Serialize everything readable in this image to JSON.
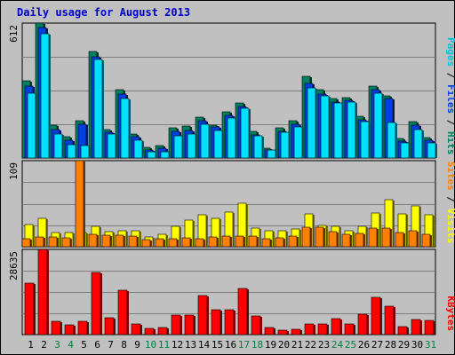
{
  "chart_data": {
    "type": "bar",
    "title": "Daily usage for August 2013",
    "categories": [
      "1",
      "2",
      "3",
      "4",
      "5",
      "6",
      "7",
      "8",
      "9",
      "10",
      "11",
      "12",
      "13",
      "14",
      "15",
      "16",
      "17",
      "18",
      "19",
      "20",
      "21",
      "22",
      "23",
      "24",
      "25",
      "26",
      "27",
      "28",
      "29",
      "30",
      "31"
    ],
    "weekend_days": [
      "3",
      "4",
      "10",
      "11",
      "17",
      "18",
      "24",
      "25",
      "31"
    ],
    "panels": [
      {
        "id": "top",
        "ymax_label": "612",
        "ymax": 612,
        "legend": [
          {
            "text": "Pages",
            "color": "#00C0E0"
          },
          {
            "text": " / ",
            "color": "#000000"
          },
          {
            "text": "Files",
            "color": "#0040E0"
          },
          {
            "text": " / ",
            "color": "#000000"
          },
          {
            "text": "Hits",
            "color": "#008060"
          }
        ],
        "series": [
          {
            "name": "Hits",
            "color": "#008060",
            "values": [
              350,
              612,
              150,
              95,
              170,
              485,
              130,
              310,
              110,
              50,
              55,
              135,
              145,
              185,
              150,
              210,
              250,
              120,
              45,
              135,
              170,
              370,
              310,
              270,
              275,
              190,
              325,
              280,
              90,
              165,
              92
            ]
          },
          {
            "name": "Files",
            "color": "#0040E0",
            "values": [
              325,
              590,
              130,
              80,
              155,
              460,
              115,
              290,
              95,
              35,
              45,
              120,
              125,
              170,
              140,
              195,
              235,
              105,
              35,
              120,
              155,
              340,
              290,
              255,
              260,
              175,
              310,
              270,
              78,
              150,
              80
            ]
          },
          {
            "name": "Pages",
            "color": "#00E0FF",
            "values": [
              295,
              565,
              110,
              60,
              55,
              445,
              110,
              270,
              80,
              30,
              30,
              100,
              110,
              155,
              125,
              180,
              225,
              100,
              35,
              115,
              140,
              320,
              280,
              250,
              255,
              165,
              295,
              160,
              70,
              130,
              70
            ]
          }
        ]
      },
      {
        "id": "mid",
        "ymax_label": "109",
        "ymax": 109,
        "legend": [
          {
            "text": "Sites",
            "color": "#FF8000"
          },
          {
            "text": " / ",
            "color": "#000000"
          },
          {
            "text": "Visits",
            "color": "#FFFF00"
          }
        ],
        "series": [
          {
            "name": "Visits",
            "color": "#FFFF00",
            "values": [
              28,
              36,
              18,
              18,
              18,
              26,
              19,
              20,
              20,
              12,
              16,
              26,
              34,
              40,
              36,
              44,
              55,
              24,
              20,
              20,
              22,
              42,
              27,
              26,
              20,
              26,
              43,
              59,
              42,
              52,
              40
            ]
          },
          {
            "name": "Sites",
            "color": "#FF8000",
            "values": [
              10,
              12,
              12,
              11,
              109,
              16,
              15,
              15,
              13,
              9,
              10,
              10,
              11,
              10,
              12,
              13,
              13,
              14,
              10,
              11,
              13,
              25,
              25,
              19,
              16,
              17,
              24,
              24,
              18,
              20,
              16
            ]
          }
        ]
      },
      {
        "id": "bot",
        "ymax_label": "28635",
        "ymax": 28635,
        "legend": [
          {
            "text": "KBytes",
            "color": "#FF0000"
          }
        ],
        "series": [
          {
            "name": "KBytes",
            "color": "#FF0000",
            "values": [
              17200,
              28635,
              4500,
              3300,
              4500,
              21000,
              5800,
              14800,
              3600,
              2000,
              2300,
              6500,
              6500,
              13000,
              8500,
              8300,
              15400,
              6300,
              2500,
              1400,
              1900,
              3700,
              3600,
              5300,
              3500,
              7000,
              12500,
              9500,
              2600,
              5000,
              4800
            ]
          }
        ]
      }
    ]
  }
}
